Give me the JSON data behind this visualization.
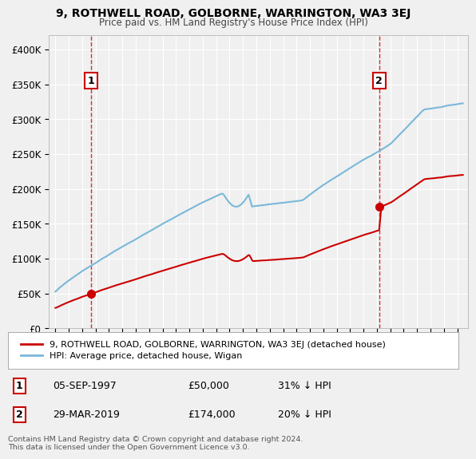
{
  "title": "9, ROTHWELL ROAD, GOLBORNE, WARRINGTON, WA3 3EJ",
  "subtitle": "Price paid vs. HM Land Registry's House Price Index (HPI)",
  "ylim": [
    0,
    420000
  ],
  "yticks": [
    0,
    50000,
    100000,
    150000,
    200000,
    250000,
    300000,
    350000,
    400000
  ],
  "ytick_labels": [
    "£0",
    "£50K",
    "£100K",
    "£150K",
    "£200K",
    "£250K",
    "£300K",
    "£350K",
    "£400K"
  ],
  "sale1": {
    "price": 50000,
    "label": "1",
    "pct": "31% ↓ HPI",
    "date_str": "05-SEP-1997"
  },
  "sale2": {
    "price": 174000,
    "label": "2",
    "pct": "20% ↓ HPI",
    "date_str": "29-MAR-2019"
  },
  "hpi_color": "#7ab8d9",
  "sale_color": "#cc0000",
  "dashed_color": "#cc0000",
  "legend_label1": "9, ROTHWELL ROAD, GOLBORNE, WARRINGTON, WA3 3EJ (detached house)",
  "legend_label2": "HPI: Average price, detached house, Wigan",
  "footer": "Contains HM Land Registry data © Crown copyright and database right 2024.\nThis data is licensed under the Open Government Licence v3.0.",
  "background_color": "#f0f0f0",
  "plot_bg_color": "#f0f0f0",
  "grid_color": "#ffffff"
}
